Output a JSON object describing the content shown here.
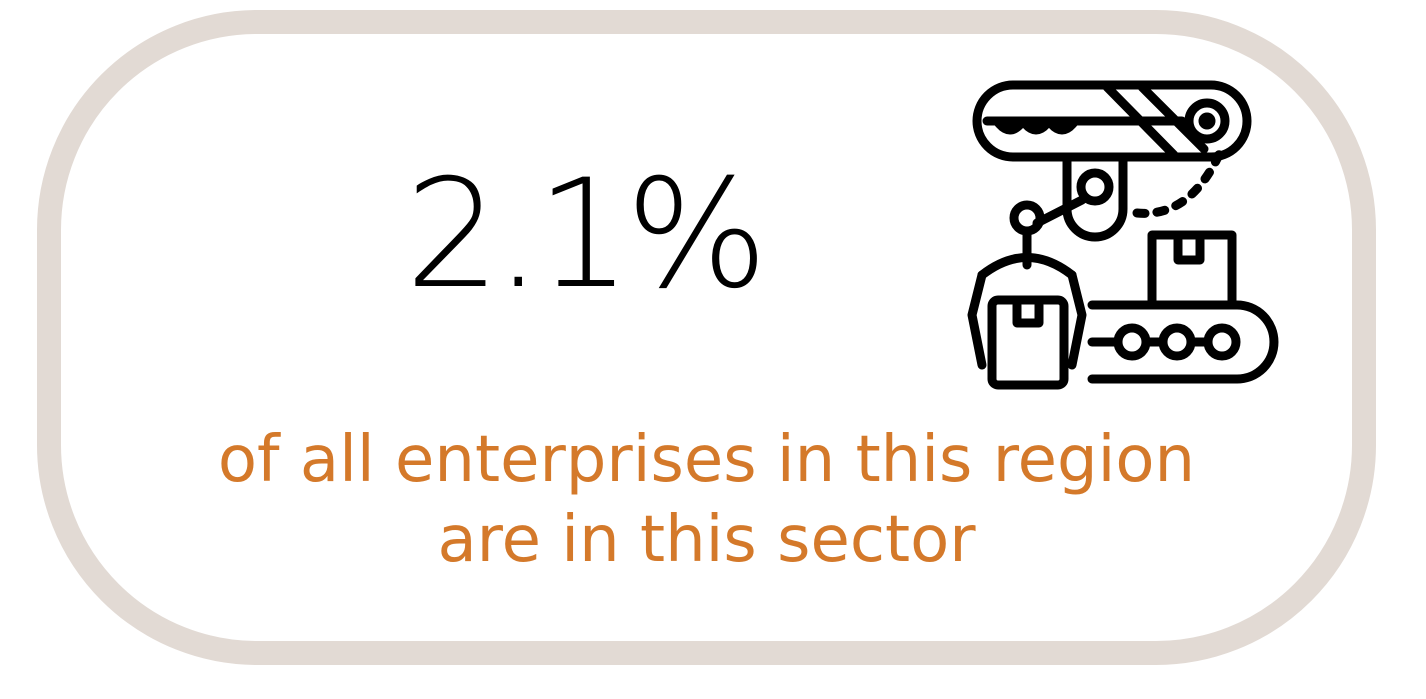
{
  "stat": {
    "value": "2.1%"
  },
  "caption": {
    "line1": "of all enterprises in this region",
    "line2": "are in this sector"
  },
  "icon": {
    "name": "industrial-robot-arm-conveyor-icon"
  },
  "colors": {
    "card_border": "#e2dad4",
    "caption_text": "#d4792a",
    "stat_text": "#000000"
  }
}
